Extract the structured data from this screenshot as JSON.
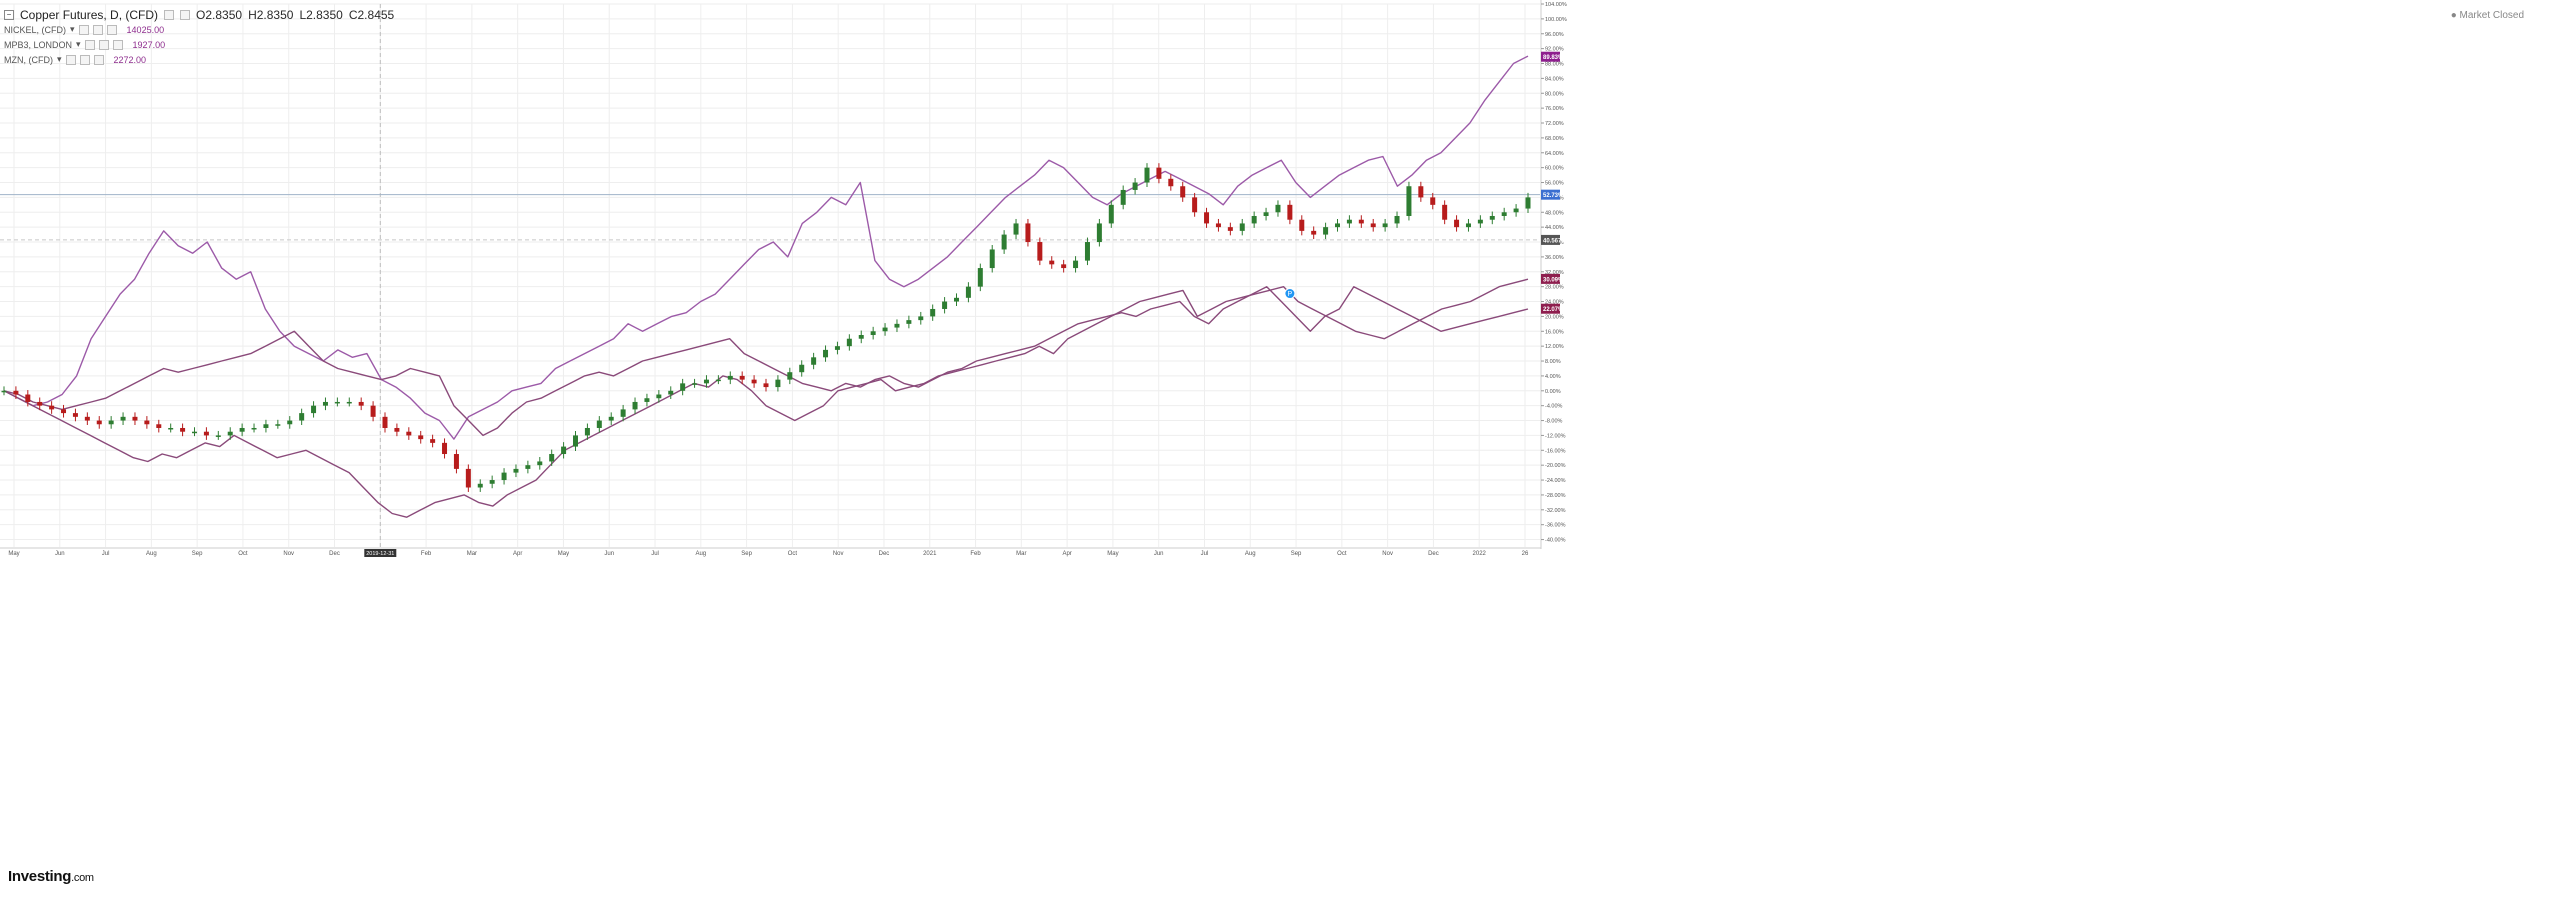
{
  "header": {
    "symbol": "Copper Futures, D, (CFD)",
    "open": "O2.8350",
    "high": "H2.8350",
    "low": "L2.8350",
    "close": "C2.8455"
  },
  "compare": [
    {
      "label": "NICKEL, (CFD)",
      "value": "14025.00"
    },
    {
      "label": "MPB3, LONDON",
      "value": "1927.00"
    },
    {
      "label": "MZN, (CFD)",
      "value": "2272.00"
    }
  ],
  "market_status": "Market Closed",
  "logo": {
    "brand": "Investing",
    "suffix": ".com"
  },
  "colors": {
    "up": "#2e7d32",
    "down": "#b71c1c",
    "line": "#9c5aa8",
    "line_dark": "#8a4a7a",
    "grid": "#eeeeee",
    "axis_text": "#555555"
  },
  "chart_data": {
    "type": "line",
    "grid": true,
    "y_format": "percent",
    "ylim": [
      -42,
      104
    ],
    "y_ticks": [
      104,
      100,
      96,
      92,
      88,
      84,
      80,
      76,
      72,
      68,
      64,
      60,
      56,
      52,
      48,
      44,
      40,
      36,
      32,
      28,
      24,
      20,
      16,
      12,
      8,
      4,
      0,
      -4,
      -8,
      -12,
      -16,
      -20,
      -24,
      -28,
      -32,
      -36,
      -40
    ],
    "y_tick_labels": [
      "104.00%",
      "100.00%",
      "96.00%",
      "92.00%",
      "88.00%",
      "84.00%",
      "80.00%",
      "76.00%",
      "72.00%",
      "68.00%",
      "64.00%",
      "60.00%",
      "56.00%",
      "52.00%",
      "48.00%",
      "44.00%",
      "40.00%",
      "36.00%",
      "32.00%",
      "28.00%",
      "24.00%",
      "20.00%",
      "16.00%",
      "12.00%",
      "8.00%",
      "4.00%",
      "0.00%",
      "-4.00%",
      "-8.00%",
      "-12.00%",
      "-16.00%",
      "-20.00%",
      "-24.00%",
      "-28.00%",
      "-32.00%",
      "-36.00%",
      "-40.00%"
    ],
    "x_ticks": [
      "May",
      "Jun",
      "Jul",
      "Aug",
      "Sep",
      "Oct",
      "Nov",
      "Dec",
      "2019-12-31",
      "Feb",
      "Mar",
      "Apr",
      "May",
      "Jun",
      "Jul",
      "Aug",
      "Sep",
      "Oct",
      "Nov",
      "Dec",
      "2021",
      "Feb",
      "Mar",
      "Apr",
      "May",
      "Jun",
      "Jul",
      "Aug",
      "Sep",
      "Oct",
      "Nov",
      "Dec",
      "2022",
      "26"
    ],
    "x_highlight": "2019-12-31",
    "price_badges": [
      {
        "label": "89.83%",
        "value": 89.83,
        "color": "#8e1e8e"
      },
      {
        "label": "52.73%",
        "value": 52.73,
        "color": "#3b6fd1"
      },
      {
        "label": "40.5670",
        "value": 40.567,
        "color": "#555555"
      },
      {
        "label": "30.09%",
        "value": 30.09,
        "color": "#8e1e4e"
      },
      {
        "label": "22.07%",
        "value": 22.07,
        "color": "#8e1e4e"
      }
    ],
    "horizontal_line_value": 52.73,
    "crosshair_value": 40.567,
    "event_marker": {
      "label": "P",
      "x_index": 108,
      "value": 24
    },
    "series": [
      {
        "name": "Copper Futures, D, (CFD)",
        "style": "candles",
        "values": [
          0,
          -1,
          -3,
          -4,
          -5,
          -6,
          -7,
          -8,
          -9,
          -8,
          -7,
          -8,
          -9,
          -10,
          -10,
          -11,
          -11,
          -12,
          -12,
          -11,
          -10,
          -10,
          -9,
          -9,
          -8,
          -6,
          -4,
          -3,
          -3,
          -3,
          -4,
          -7,
          -10,
          -11,
          -12,
          -13,
          -14,
          -17,
          -21,
          -26,
          -25,
          -24,
          -22,
          -21,
          -20,
          -19,
          -17,
          -15,
          -12,
          -10,
          -8,
          -7,
          -5,
          -3,
          -2,
          -1,
          0,
          2,
          2,
          3,
          3,
          4,
          3,
          2,
          1,
          3,
          5,
          7,
          9,
          11,
          12,
          14,
          15,
          16,
          17,
          18,
          19,
          20,
          22,
          24,
          25,
          28,
          33,
          38,
          42,
          45,
          40,
          35,
          34,
          33,
          35,
          40,
          45,
          50,
          54,
          56,
          60,
          57,
          55,
          52,
          48,
          45,
          44,
          43,
          45,
          47,
          48,
          50,
          46,
          43,
          42,
          44,
          45,
          46,
          45,
          44,
          45,
          47,
          55,
          52,
          50,
          46,
          44,
          45,
          46,
          47,
          48,
          49,
          52
        ]
      },
      {
        "name": "NICKEL, (CFD)",
        "style": "line",
        "values": [
          0,
          -2,
          -4,
          -3,
          -1,
          4,
          14,
          20,
          26,
          30,
          37,
          43,
          39,
          37,
          40,
          33,
          30,
          32,
          22,
          16,
          12,
          10,
          8,
          11,
          9,
          10,
          3,
          1,
          -2,
          -6,
          -8,
          -13,
          -7,
          -5,
          -3,
          0,
          1,
          2,
          6,
          8,
          10,
          12,
          14,
          18,
          16,
          18,
          20,
          21,
          24,
          26,
          30,
          34,
          38,
          40,
          36,
          45,
          48,
          52,
          50,
          56,
          35,
          30,
          28,
          30,
          33,
          36,
          40,
          44,
          48,
          52,
          55,
          58,
          62,
          60,
          56,
          52,
          50,
          53,
          55,
          57,
          59,
          57,
          55,
          53,
          50,
          55,
          58,
          60,
          62,
          56,
          52,
          55,
          58,
          60,
          62,
          63,
          55,
          58,
          62,
          64,
          68,
          72,
          78,
          83,
          88,
          90
        ]
      },
      {
        "name": "MPB3, LONDON",
        "style": "line",
        "values": [
          0,
          -1,
          -3,
          -4,
          -5,
          -4,
          -3,
          -2,
          0,
          2,
          4,
          6,
          5,
          6,
          7,
          8,
          9,
          10,
          12,
          14,
          16,
          12,
          8,
          6,
          5,
          4,
          3,
          4,
          6,
          5,
          4,
          -4,
          -8,
          -12,
          -10,
          -6,
          -3,
          -2,
          0,
          2,
          4,
          5,
          4,
          6,
          8,
          9,
          10,
          11,
          12,
          13,
          14,
          10,
          8,
          6,
          4,
          2,
          1,
          0,
          2,
          1,
          3,
          4,
          2,
          1,
          3,
          5,
          6,
          8,
          9,
          10,
          11,
          12,
          14,
          16,
          18,
          19,
          20,
          21,
          20,
          22,
          23,
          24,
          20,
          18,
          22,
          24,
          26,
          28,
          24,
          20,
          16,
          20,
          22,
          28,
          26,
          24,
          22,
          20,
          18,
          16,
          17,
          18,
          19,
          20,
          21,
          22
        ]
      },
      {
        "name": "MZN, (CFD)",
        "style": "line",
        "values": [
          0,
          -2,
          -4,
          -6,
          -8,
          -10,
          -12,
          -14,
          -16,
          -18,
          -19,
          -17,
          -18,
          -16,
          -14,
          -15,
          -12,
          -14,
          -16,
          -18,
          -17,
          -16,
          -18,
          -20,
          -22,
          -26,
          -30,
          -33,
          -34,
          -32,
          -30,
          -29,
          -28,
          -30,
          -31,
          -28,
          -26,
          -24,
          -20,
          -16,
          -14,
          -12,
          -10,
          -8,
          -6,
          -4,
          -2,
          0,
          2,
          1,
          4,
          3,
          0,
          -4,
          -6,
          -8,
          -6,
          -4,
          0,
          1,
          2,
          3,
          0,
          1,
          2,
          4,
          5,
          6,
          7,
          8,
          9,
          10,
          12,
          10,
          14,
          16,
          18,
          20,
          22,
          24,
          25,
          26,
          27,
          20,
          22,
          24,
          25,
          26,
          27,
          28,
          24,
          22,
          20,
          18,
          16,
          15,
          14,
          16,
          18,
          20,
          22,
          23,
          24,
          26,
          28,
          29,
          30
        ]
      }
    ]
  }
}
